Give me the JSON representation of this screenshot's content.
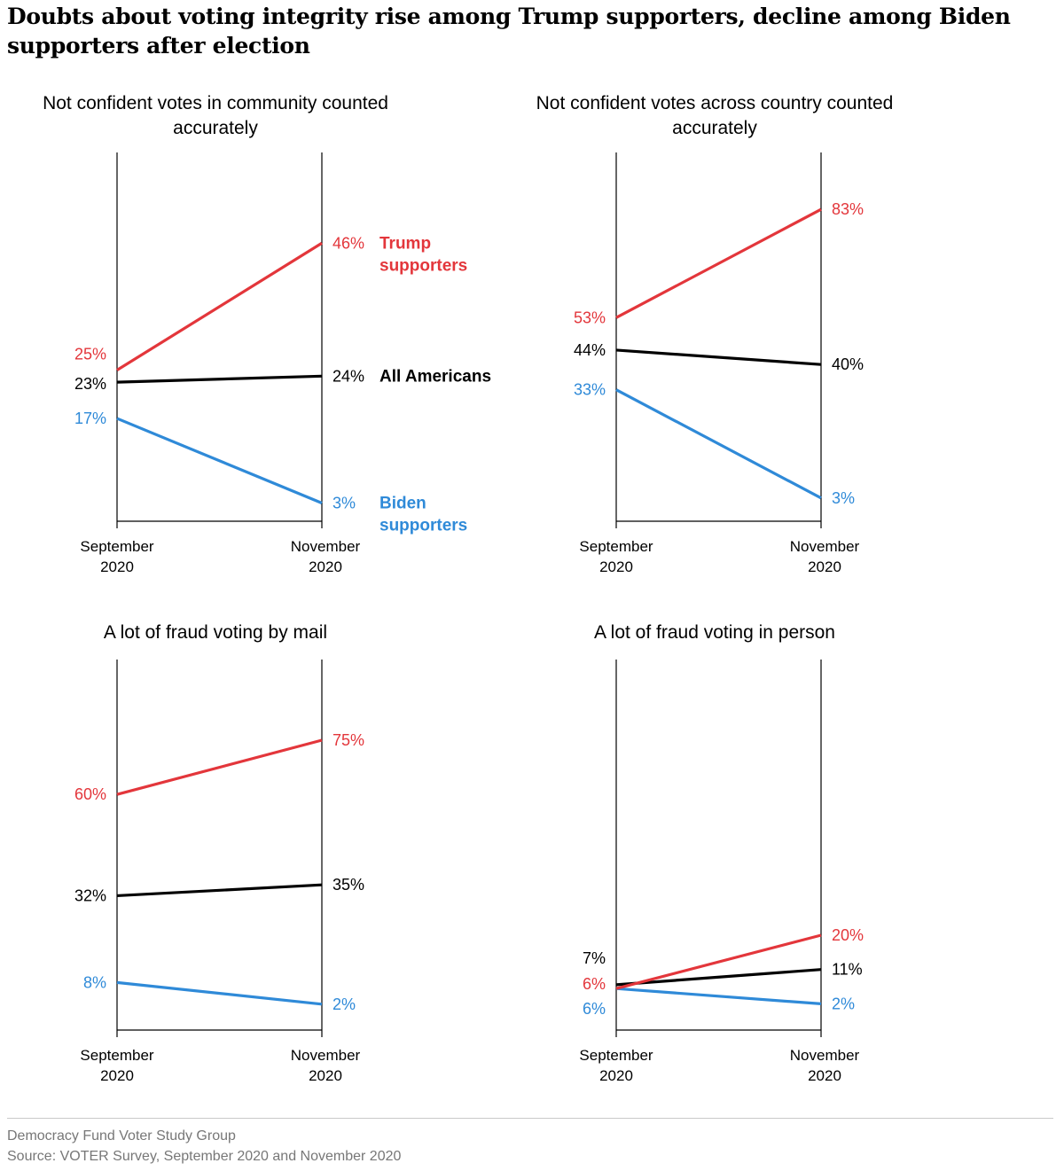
{
  "title": "Doubts about voting integrity rise among Trump supporters, decline among Biden supporters after election",
  "footer": {
    "line1": "Democracy Fund Voter Study Group",
    "line2": "Source: VOTER Survey, September 2020 and November 2020"
  },
  "colors": {
    "trump": "#e3363b",
    "all": "#000000",
    "biden": "#2f8ad8"
  },
  "chart_data": [
    {
      "type": "line",
      "title": "Not confident votes in community counted accurately",
      "x": [
        "September 2020",
        "November 2020"
      ],
      "series": [
        {
          "name": "Trump supporters",
          "key": "trump",
          "values": [
            25,
            46
          ],
          "labels": [
            "25%",
            "46%"
          ]
        },
        {
          "name": "All Americans",
          "key": "all",
          "values": [
            23,
            24
          ],
          "labels": [
            "23%",
            "24%"
          ]
        },
        {
          "name": "Biden supporters",
          "key": "biden",
          "values": [
            17,
            3
          ],
          "labels": [
            "17%",
            "3%"
          ]
        }
      ]
    },
    {
      "type": "line",
      "title": "Not confident votes across country counted accurately",
      "x": [
        "September 2020",
        "November 2020"
      ],
      "series": [
        {
          "key": "trump",
          "values": [
            53,
            83
          ],
          "labels": [
            "53%",
            "83%"
          ]
        },
        {
          "key": "all",
          "values": [
            44,
            40
          ],
          "labels": [
            "44%",
            "40%"
          ]
        },
        {
          "key": "biden",
          "values": [
            33,
            3
          ],
          "labels": [
            "33%",
            "3%"
          ]
        }
      ]
    },
    {
      "type": "line",
      "title": "A lot of fraud voting by mail",
      "x": [
        "September 2020",
        "November 2020"
      ],
      "series": [
        {
          "key": "trump",
          "values": [
            60,
            75
          ],
          "labels": [
            "60%",
            "75%"
          ]
        },
        {
          "key": "all",
          "values": [
            32,
            35
          ],
          "labels": [
            "32%",
            "35%"
          ]
        },
        {
          "key": "biden",
          "values": [
            8,
            2
          ],
          "labels": [
            "8%",
            "2%"
          ]
        }
      ]
    },
    {
      "type": "line",
      "title": "A lot of fraud voting in person",
      "x": [
        "September 2020",
        "November 2020"
      ],
      "series": [
        {
          "key": "trump",
          "values": [
            6,
            20
          ],
          "labels": [
            "6%",
            "20%"
          ]
        },
        {
          "key": "all",
          "values": [
            7,
            11
          ],
          "labels": [
            "7%",
            "11%"
          ]
        },
        {
          "key": "biden",
          "values": [
            6,
            2
          ],
          "labels": [
            "6%",
            "2%"
          ]
        }
      ]
    }
  ]
}
